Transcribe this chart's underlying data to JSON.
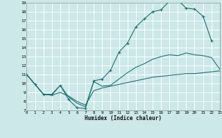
{
  "xlabel": "Humidex (Indice chaleur)",
  "bg_color": "#cce8e8",
  "line_color": "#1a7070",
  "grid_color": "#ffffff",
  "xlim": [
    0,
    23
  ],
  "ylim": [
    7,
    19
  ],
  "xticks": [
    0,
    1,
    2,
    3,
    4,
    5,
    6,
    7,
    8,
    9,
    10,
    11,
    12,
    13,
    14,
    15,
    16,
    17,
    18,
    19,
    20,
    21,
    22,
    23
  ],
  "yticks": [
    7,
    8,
    9,
    10,
    11,
    12,
    13,
    14,
    15,
    16,
    17,
    18,
    19
  ],
  "curve_upper_x": [
    0,
    1,
    2,
    3,
    4,
    5,
    6,
    7,
    8,
    9,
    10,
    11,
    12,
    13,
    14,
    15,
    16,
    17,
    18,
    19,
    20,
    21,
    22
  ],
  "curve_upper_y": [
    11.0,
    9.9,
    8.8,
    8.8,
    9.8,
    8.2,
    7.3,
    7.2,
    10.3,
    10.5,
    11.5,
    13.5,
    14.5,
    16.3,
    17.2,
    18.0,
    18.2,
    19.2,
    19.3,
    18.4,
    18.3,
    17.5,
    14.8
  ],
  "curve_mid_x": [
    0,
    1,
    2,
    3,
    4,
    5,
    6,
    7,
    8,
    9,
    10,
    11,
    12,
    13,
    14,
    15,
    16,
    17,
    18,
    19,
    20,
    21,
    22,
    23
  ],
  "curve_mid_y": [
    11.0,
    9.9,
    8.8,
    8.7,
    9.8,
    8.5,
    7.8,
    7.4,
    10.2,
    9.7,
    9.8,
    10.5,
    11.2,
    11.8,
    12.2,
    12.7,
    13.0,
    13.2,
    13.1,
    13.4,
    13.2,
    13.1,
    12.9,
    11.6
  ],
  "curve_low_x": [
    0,
    1,
    2,
    3,
    4,
    5,
    6,
    7,
    8,
    9,
    10,
    11,
    12,
    13,
    14,
    15,
    16,
    17,
    18,
    19,
    20,
    21,
    22,
    23
  ],
  "curve_low_y": [
    11.0,
    9.9,
    8.8,
    8.7,
    9.0,
    8.6,
    8.0,
    7.6,
    9.2,
    9.5,
    9.7,
    9.9,
    10.1,
    10.3,
    10.5,
    10.7,
    10.8,
    10.9,
    11.0,
    11.1,
    11.1,
    11.2,
    11.3,
    11.4
  ]
}
